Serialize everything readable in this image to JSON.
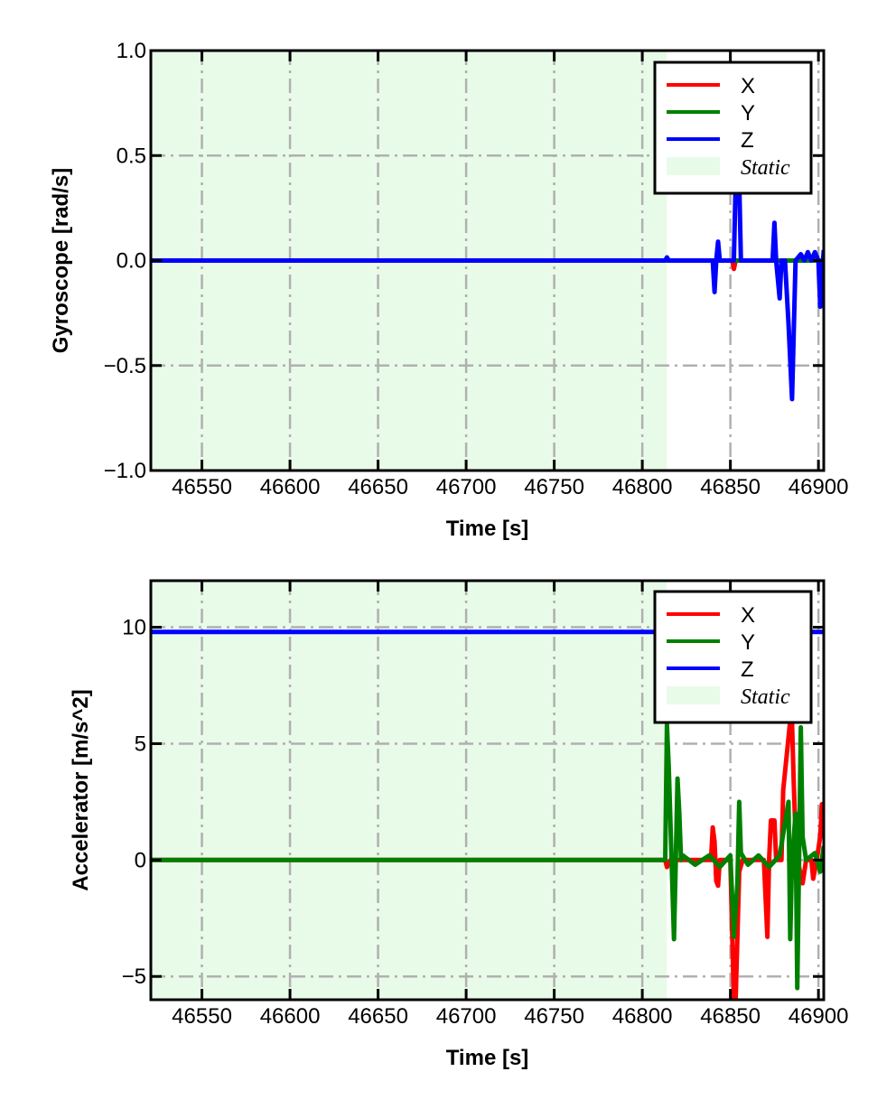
{
  "chart_data": [
    {
      "type": "line",
      "xlabel": "Time [s]",
      "ylabel": "Gyroscope [rad/s]",
      "xlim": [
        46521,
        46903
      ],
      "ylim": [
        -1.0,
        1.0
      ],
      "xticks": [
        46550,
        46600,
        46650,
        46700,
        46750,
        46800,
        46850,
        46900
      ],
      "xtick_labels": [
        "46550",
        "46600",
        "46650",
        "46700",
        "46750",
        "46800",
        "46850",
        "46900"
      ],
      "yticks": [
        -1.0,
        -0.5,
        0.0,
        0.5,
        1.0
      ],
      "ytick_labels": [
        "−1.0",
        "−0.5",
        "0.0",
        "0.5",
        "1.0"
      ],
      "grid": true,
      "legend_position": "top-right",
      "static_span": [
        46521,
        46814
      ],
      "legend": [
        "X",
        "Y",
        "Z",
        "Static"
      ],
      "series": [
        {
          "name": "X",
          "color": "#ff0000",
          "points": [
            [
              46521,
              0
            ],
            [
              46851,
              0
            ],
            [
              46852,
              -0.04
            ],
            [
              46853,
              0
            ],
            [
              46903,
              0
            ]
          ]
        },
        {
          "name": "Y",
          "color": "#008000",
          "points": [
            [
              46521,
              0
            ],
            [
              46903,
              0
            ]
          ]
        },
        {
          "name": "Z",
          "color": "#0000ff",
          "points": [
            [
              46521,
              0
            ],
            [
              46813,
              0
            ],
            [
              46814,
              0.015
            ],
            [
              46815,
              0
            ],
            [
              46840,
              0
            ],
            [
              46841,
              -0.15
            ],
            [
              46842,
              0
            ],
            [
              46843,
              0.09
            ],
            [
              46844,
              0
            ],
            [
              46852,
              0
            ],
            [
              46853,
              0.38
            ],
            [
              46855,
              0.38
            ],
            [
              46856,
              0
            ],
            [
              46874,
              0
            ],
            [
              46875,
              0.18
            ],
            [
              46876,
              0
            ],
            [
              46878,
              -0.18
            ],
            [
              46879,
              0
            ],
            [
              46881,
              0
            ],
            [
              46883,
              -0.3
            ],
            [
              46885,
              -0.66
            ],
            [
              46887,
              0
            ],
            [
              46890,
              0.03
            ],
            [
              46892,
              0
            ],
            [
              46894,
              0.04
            ],
            [
              46896,
              0
            ],
            [
              46898,
              0.04
            ],
            [
              46900,
              0
            ],
            [
              46901,
              -0.22
            ],
            [
              46903,
              0.05
            ]
          ]
        }
      ]
    },
    {
      "type": "line",
      "xlabel": "Time [s]",
      "ylabel": "Accelerator [m/s^2]",
      "xlim": [
        46521,
        46903
      ],
      "ylim": [
        -6,
        12
      ],
      "xticks": [
        46550,
        46600,
        46650,
        46700,
        46750,
        46800,
        46850,
        46900
      ],
      "xtick_labels": [
        "46550",
        "46600",
        "46650",
        "46700",
        "46750",
        "46800",
        "46850",
        "46900"
      ],
      "yticks": [
        -5,
        0,
        5,
        10
      ],
      "ytick_labels": [
        "−5",
        "0",
        "5",
        "10"
      ],
      "grid": true,
      "legend_position": "top-right",
      "static_span": [
        46521,
        46814
      ],
      "legend": [
        "X",
        "Y",
        "Z",
        "Static"
      ],
      "series": [
        {
          "name": "Z",
          "color": "#0000ff",
          "points": [
            [
              46521,
              9.8
            ],
            [
              46903,
              9.8
            ]
          ]
        },
        {
          "name": "X",
          "color": "#ff0000",
          "points": [
            [
              46521,
              0
            ],
            [
              46813,
              0
            ],
            [
              46814,
              -0.3
            ],
            [
              46816,
              0
            ],
            [
              46839,
              0
            ],
            [
              46840,
              1.4
            ],
            [
              46841,
              0.8
            ],
            [
              46842,
              -0.9
            ],
            [
              46843,
              -1.1
            ],
            [
              46844,
              0
            ],
            [
              46850,
              0
            ],
            [
              46852,
              -6
            ],
            [
              46853,
              -6
            ],
            [
              46855,
              -0.5
            ],
            [
              46857,
              0
            ],
            [
              46869,
              0
            ],
            [
              46871,
              -3.3
            ],
            [
              46872,
              0
            ],
            [
              46873,
              1.7
            ],
            [
              46875,
              1.7
            ],
            [
              46876,
              0
            ],
            [
              46879,
              0
            ],
            [
              46880,
              3.0
            ],
            [
              46884,
              6
            ],
            [
              46885,
              5.9
            ],
            [
              46886,
              3.3
            ],
            [
              46887,
              1
            ],
            [
              46889,
              -0.3
            ],
            [
              46891,
              -1.0
            ],
            [
              46893,
              0
            ],
            [
              46896,
              0
            ],
            [
              46897,
              -0.8
            ],
            [
              46899,
              0
            ],
            [
              46901,
              1
            ],
            [
              46902,
              2.4
            ],
            [
              46903,
              2.4
            ]
          ]
        },
        {
          "name": "Y",
          "color": "#008000",
          "points": [
            [
              46521,
              0
            ],
            [
              46813,
              0
            ],
            [
              46814,
              5.8
            ],
            [
              46815,
              4
            ],
            [
              46818,
              -3.4
            ],
            [
              46819,
              0
            ],
            [
              46820,
              3.5
            ],
            [
              46821,
              2
            ],
            [
              46822,
              0
            ],
            [
              46823,
              0.2
            ],
            [
              46830,
              -0.2
            ],
            [
              46838,
              0.2
            ],
            [
              46844,
              -0.3
            ],
            [
              46850,
              0.2
            ],
            [
              46852,
              -3.3
            ],
            [
              46854,
              -1
            ],
            [
              46855,
              2.5
            ],
            [
              46856,
              0.3
            ],
            [
              46860,
              -0.2
            ],
            [
              46866,
              0.2
            ],
            [
              46872,
              -0.3
            ],
            [
              46878,
              0.2
            ],
            [
              46883,
              2.5
            ],
            [
              46884,
              -3.4
            ],
            [
              46885,
              0
            ],
            [
              46887,
              2
            ],
            [
              46888,
              -5.5
            ],
            [
              46889,
              0
            ],
            [
              46890,
              5.7
            ],
            [
              46891,
              1
            ],
            [
              46893,
              0
            ],
            [
              46898,
              0.3
            ],
            [
              46901,
              -0.5
            ],
            [
              46903,
              0.6
            ]
          ]
        }
      ]
    }
  ]
}
